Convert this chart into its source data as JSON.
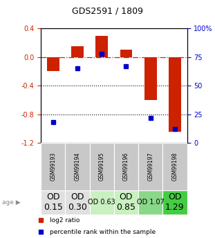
{
  "title": "GDS2591 / 1809",
  "samples": [
    "GSM99193",
    "GSM99194",
    "GSM99195",
    "GSM99196",
    "GSM99197",
    "GSM99198"
  ],
  "log2_ratio": [
    -0.2,
    0.15,
    0.3,
    0.1,
    -0.6,
    -1.05
  ],
  "percentile_rank": [
    18,
    65,
    78,
    67,
    22,
    12
  ],
  "od_values": [
    "OD\n0.15",
    "OD\n0.30",
    "OD 0.63",
    "OD\n0.85",
    "OD 1.07",
    "OD\n1.29"
  ],
  "od_fontsize": [
    9,
    9,
    7,
    9,
    7,
    9
  ],
  "od_colors": [
    "#e0e0e0",
    "#e0e0e0",
    "#c8f0c0",
    "#c8f0c0",
    "#88d888",
    "#44cc44"
  ],
  "bar_color": "#cc2200",
  "dot_color": "#0000cc",
  "ylim_left": [
    -1.2,
    0.4
  ],
  "ylim_right": [
    0,
    100
  ],
  "yticks_left": [
    -1.2,
    -0.8,
    -0.4,
    0.0,
    0.4
  ],
  "yticks_right": [
    0,
    25,
    50,
    75,
    100
  ],
  "ytick_labels_right": [
    "0",
    "25",
    "50",
    "75",
    "100%"
  ],
  "hline_y": 0.0,
  "dotted_lines": [
    -0.4,
    -0.8
  ],
  "bar_width": 0.5,
  "sample_bg_color": "#c8c8c8",
  "legend_log2": "log2 ratio",
  "legend_pct": "percentile rank within the sample"
}
